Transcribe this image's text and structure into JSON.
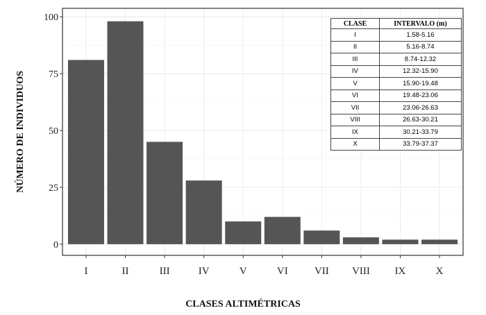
{
  "chart_data": {
    "type": "bar",
    "categories": [
      "I",
      "II",
      "III",
      "IV",
      "V",
      "VI",
      "VII",
      "VIII",
      "IX",
      "X"
    ],
    "values": [
      81,
      98,
      45,
      28,
      10,
      12,
      6,
      3,
      2,
      2
    ],
    "xlabel": "CLASES ALTIMÉTRICAS",
    "ylabel": "NÚMERO DE INDIVIDUOS",
    "yticks": [
      0,
      25,
      50,
      75,
      100
    ],
    "ylim": [
      -4.9,
      103.7
    ],
    "grid": true,
    "bar_color": "#555555",
    "inset_table": {
      "headers": [
        "CLASE",
        "INTERVALO (m)"
      ],
      "rows": [
        [
          "I",
          "1.58-5.16"
        ],
        [
          "II",
          "5.16-8.74"
        ],
        [
          "III",
          "8.74-12.32"
        ],
        [
          "IV",
          "12.32-15.90"
        ],
        [
          "V",
          "15.90-19.48"
        ],
        [
          "VI",
          "19.48-23.06"
        ],
        [
          "VII",
          "23.06-26.63"
        ],
        [
          "VIII",
          "26.63-30.21"
        ],
        [
          "IX",
          "30.21-33.79"
        ],
        [
          "X",
          "33.79-37.37"
        ]
      ]
    }
  }
}
